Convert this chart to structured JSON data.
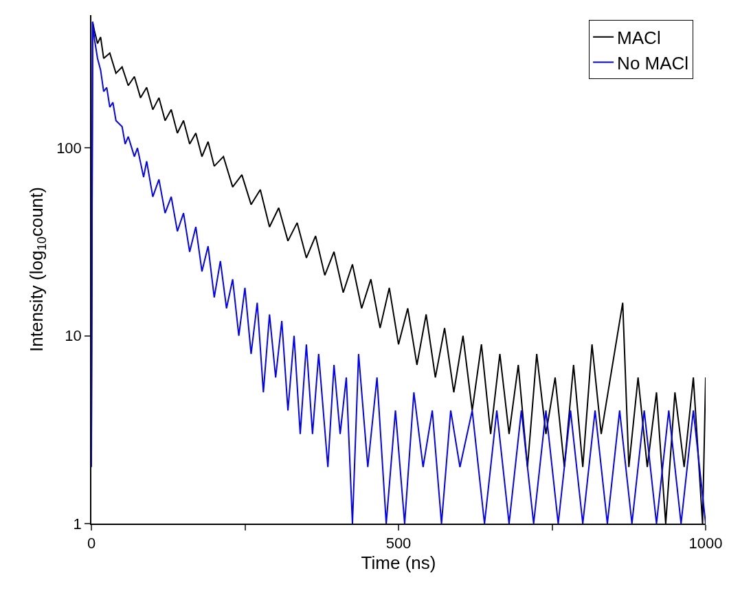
{
  "chart_data": {
    "type": "line",
    "xlabel": "Time (ns)",
    "ylabel": "Intensity (log$_{10}$count)",
    "log": "y",
    "grid": false,
    "legend": "top right",
    "marker": "none",
    "line_style": "solid",
    "xlim": [
      0,
      1000
    ],
    "xticks": [
      0,
      {
        "value": 250,
        "label": null
      },
      500,
      {
        "value": 750,
        "label": null
      },
      1000
    ],
    "ylim": [
      1,
      510
    ],
    "yticks": [
      1,
      10,
      100
    ],
    "series": [
      {
        "name": "MACl",
        "color": "#000000",
        "x": [
          0,
          2,
          5,
          10,
          15,
          20,
          30,
          40,
          50,
          60,
          70,
          80,
          90,
          100,
          110,
          120,
          130,
          140,
          150,
          160,
          170,
          180,
          190,
          200,
          215,
          230,
          245,
          260,
          275,
          290,
          305,
          320,
          335,
          350,
          365,
          380,
          395,
          410,
          425,
          440,
          455,
          470,
          485,
          500,
          515,
          530,
          545,
          560,
          575,
          590,
          605,
          620,
          635,
          650,
          665,
          680,
          695,
          710,
          725,
          740,
          755,
          770,
          785,
          800,
          815,
          830,
          845,
          865,
          875,
          890,
          905,
          920,
          935,
          950,
          965,
          980,
          995,
          1000
        ],
        "values": [
          3,
          470,
          420,
          360,
          390,
          300,
          320,
          250,
          270,
          215,
          240,
          185,
          210,
          160,
          185,
          140,
          160,
          120,
          140,
          105,
          120,
          90,
          108,
          80,
          90,
          62,
          72,
          50,
          60,
          38,
          48,
          32,
          40,
          26,
          34,
          21,
          28,
          17,
          24,
          14,
          20,
          11,
          18,
          9,
          14,
          7,
          13,
          6,
          11,
          5,
          10,
          4,
          9,
          3,
          8,
          3,
          7,
          2,
          8,
          3,
          6,
          2,
          7,
          2,
          9,
          3,
          6,
          15,
          2,
          6,
          2,
          5,
          1,
          5,
          2,
          6,
          1,
          6
        ]
      },
      {
        "name": "No MACl",
        "color": "#0000ff",
        "x": [
          0,
          2,
          5,
          10,
          15,
          20,
          25,
          30,
          35,
          40,
          50,
          55,
          60,
          70,
          75,
          85,
          90,
          100,
          110,
          120,
          130,
          140,
          150,
          160,
          170,
          180,
          190,
          200,
          210,
          220,
          230,
          240,
          250,
          260,
          270,
          280,
          290,
          300,
          310,
          320,
          330,
          340,
          350,
          360,
          370,
          385,
          395,
          405,
          415,
          425,
          435,
          450,
          465,
          480,
          495,
          510,
          525,
          540,
          555,
          570,
          585,
          600,
          620,
          640,
          660,
          680,
          700,
          720,
          740,
          760,
          780,
          800,
          820,
          840,
          860,
          880,
          900,
          920,
          940,
          960,
          980,
          1000
        ],
        "values": [
          2,
          470,
          380,
          300,
          260,
          200,
          210,
          165,
          175,
          140,
          130,
          105,
          115,
          90,
          100,
          70,
          85,
          55,
          68,
          45,
          55,
          36,
          45,
          28,
          38,
          22,
          30,
          16,
          25,
          14,
          20,
          10,
          18,
          8,
          15,
          5,
          13,
          6,
          12,
          4,
          10,
          3,
          9,
          3,
          8,
          2,
          7,
          3,
          6,
          1,
          8,
          2,
          6,
          1,
          4,
          1,
          5,
          2,
          4,
          1,
          4,
          2,
          4,
          1,
          4,
          1,
          4,
          1,
          4,
          1,
          4,
          1,
          4,
          1,
          4,
          1,
          4,
          1,
          4,
          1,
          4,
          1
        ]
      }
    ]
  }
}
